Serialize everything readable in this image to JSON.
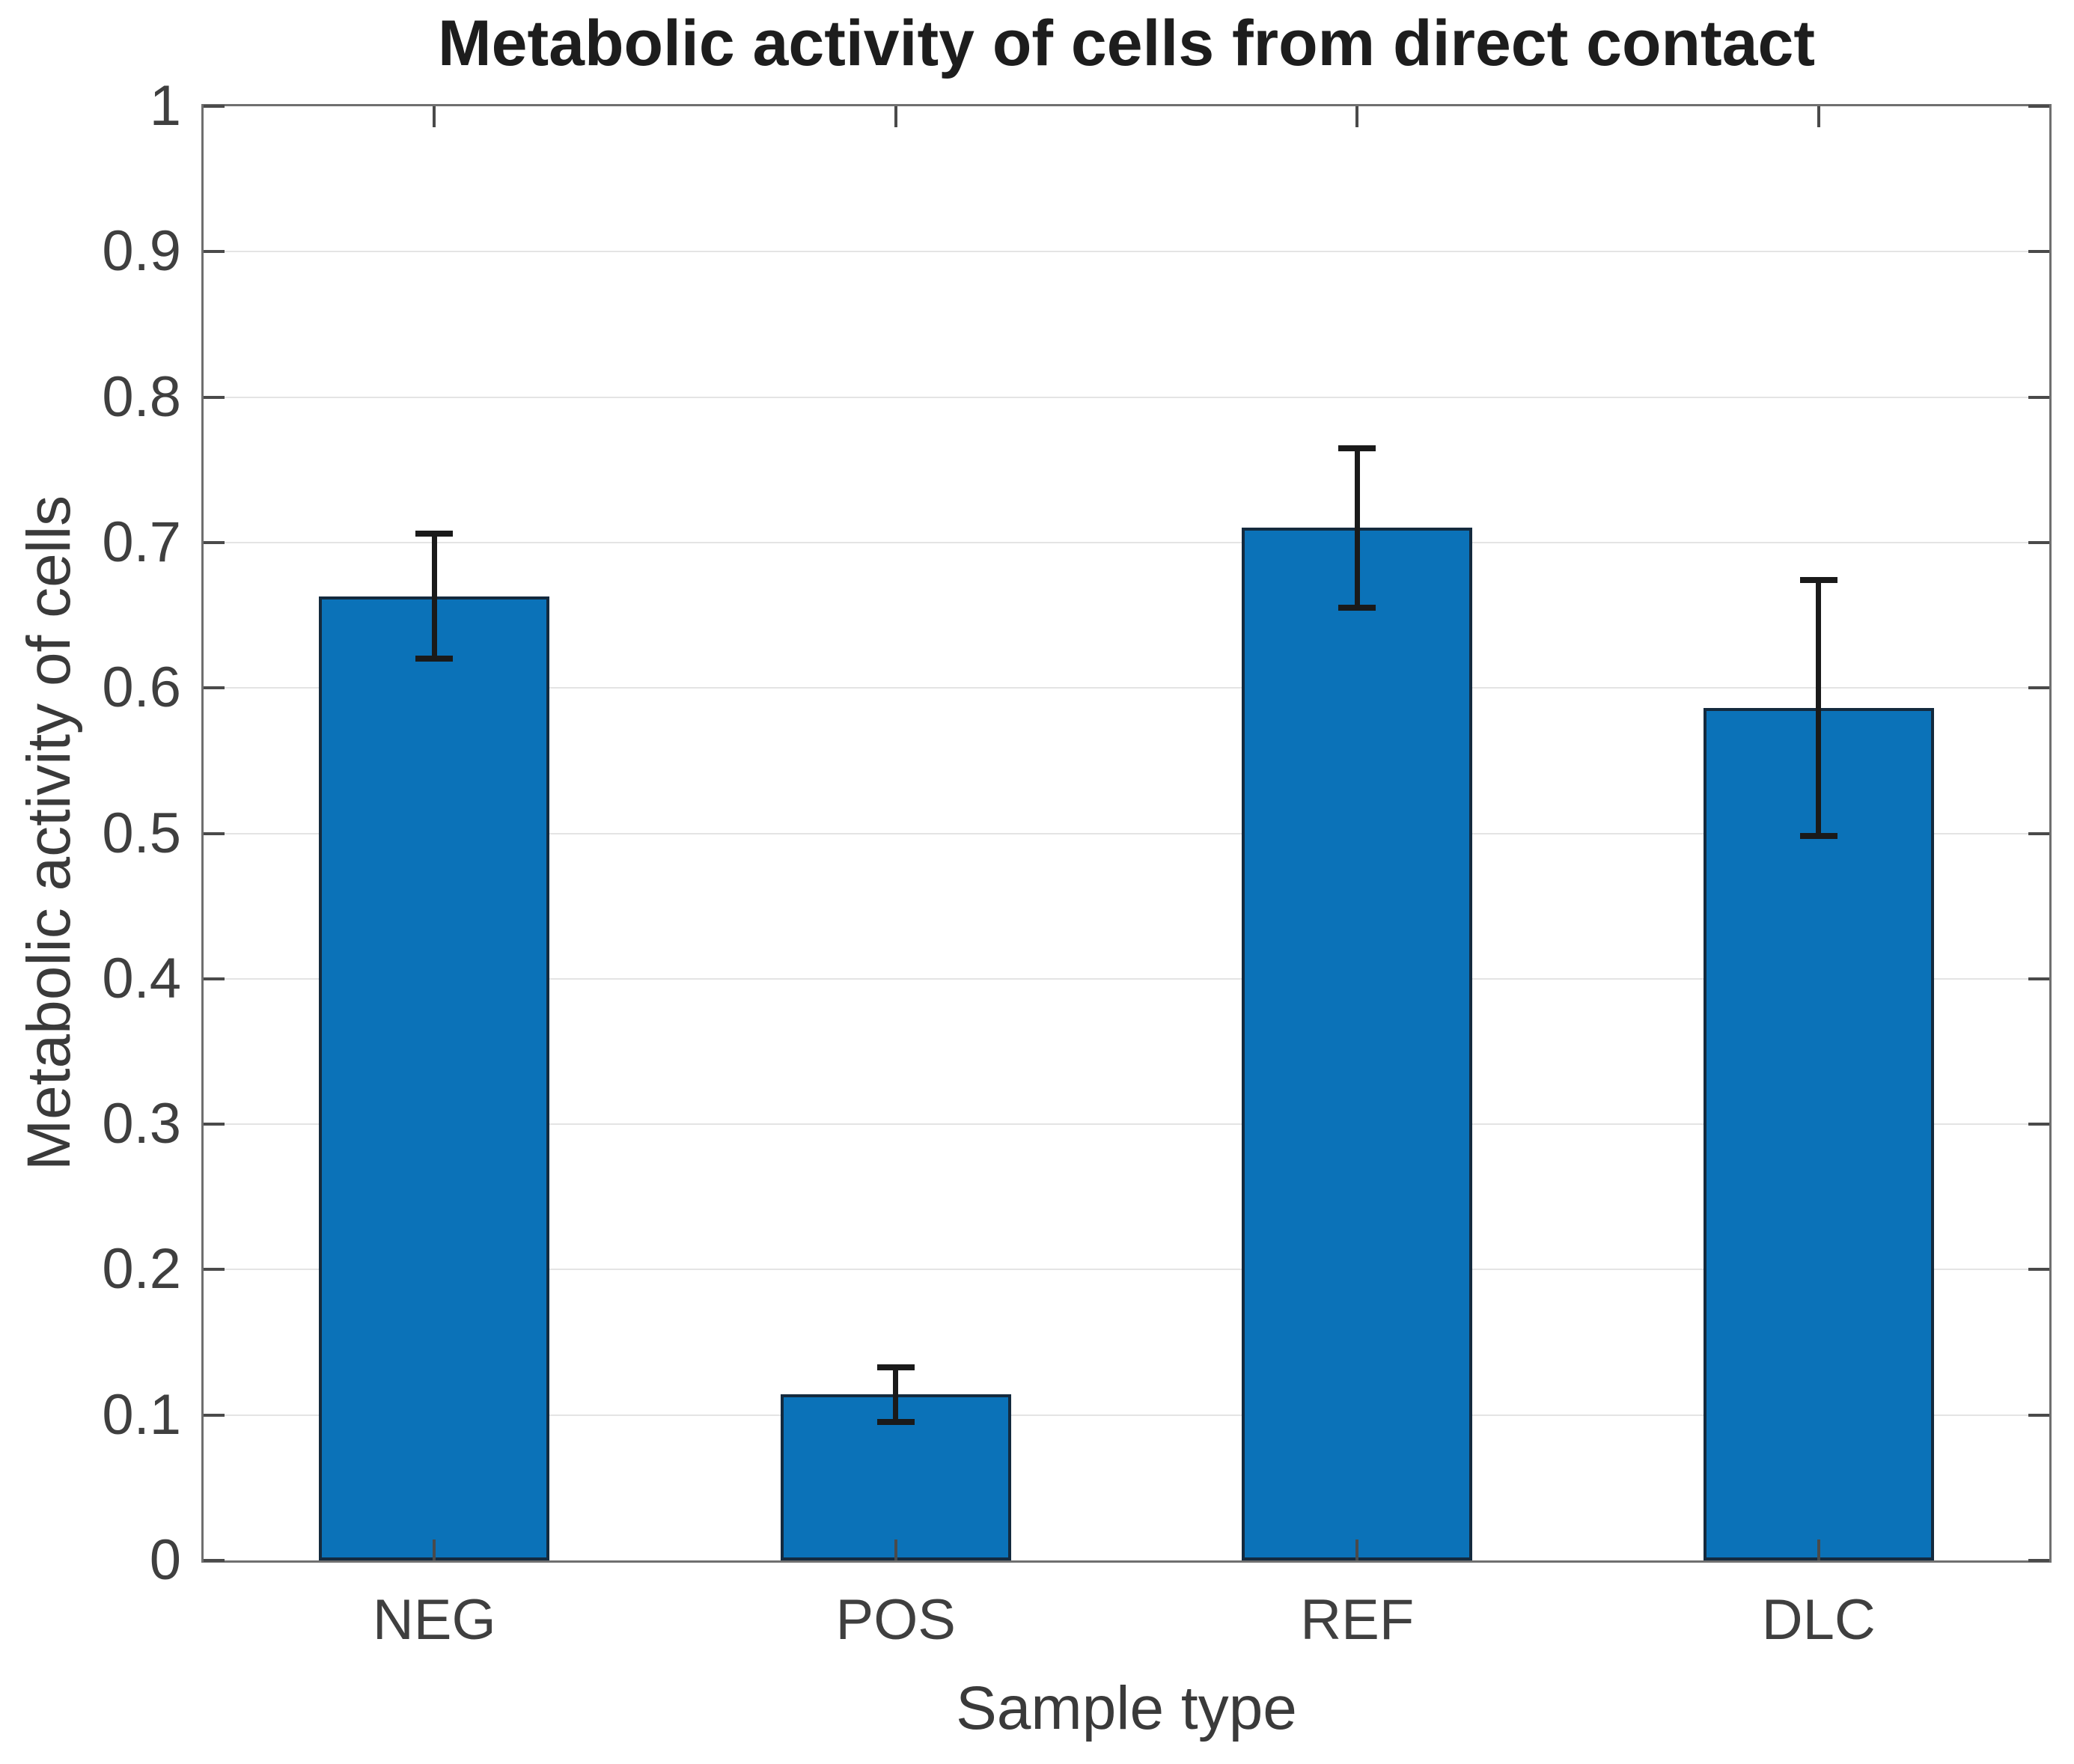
{
  "chart_data": {
    "type": "bar",
    "title": "Metabolic activity of cells from direct contact",
    "xlabel": "Sample type",
    "ylabel": "Metabolic activity of cells",
    "categories": [
      "NEG",
      "POS",
      "REF",
      "DLC"
    ],
    "values": [
      0.663,
      0.114,
      0.71,
      0.586
    ],
    "error_bars": [
      0.043,
      0.019,
      0.055,
      0.088
    ],
    "ylim": [
      0,
      1
    ],
    "yticks": [
      0,
      0.1,
      0.2,
      0.3,
      0.4,
      0.5,
      0.6,
      0.7,
      0.8,
      0.9,
      1
    ],
    "ytick_labels": [
      "0",
      "0.1",
      "0.2",
      "0.3",
      "0.4",
      "0.5",
      "0.6",
      "0.7",
      "0.8",
      "0.9",
      "1"
    ],
    "grid": "horizontal",
    "legend": "none",
    "bar_width_fraction": 0.5,
    "colors": {
      "bar_fill": "#0b72b8",
      "bar_edge": "#142a3e",
      "error_bar": "#1a1a1a",
      "axis_box": "#6f6f6f",
      "gridline": "#e4e4e4",
      "tick_mark": "#4a4a4a",
      "tick_label": "#3f3f3f",
      "axis_label_text": "#3a3a3a",
      "title_text": "#1d1d1d",
      "background": "#ffffff"
    }
  }
}
